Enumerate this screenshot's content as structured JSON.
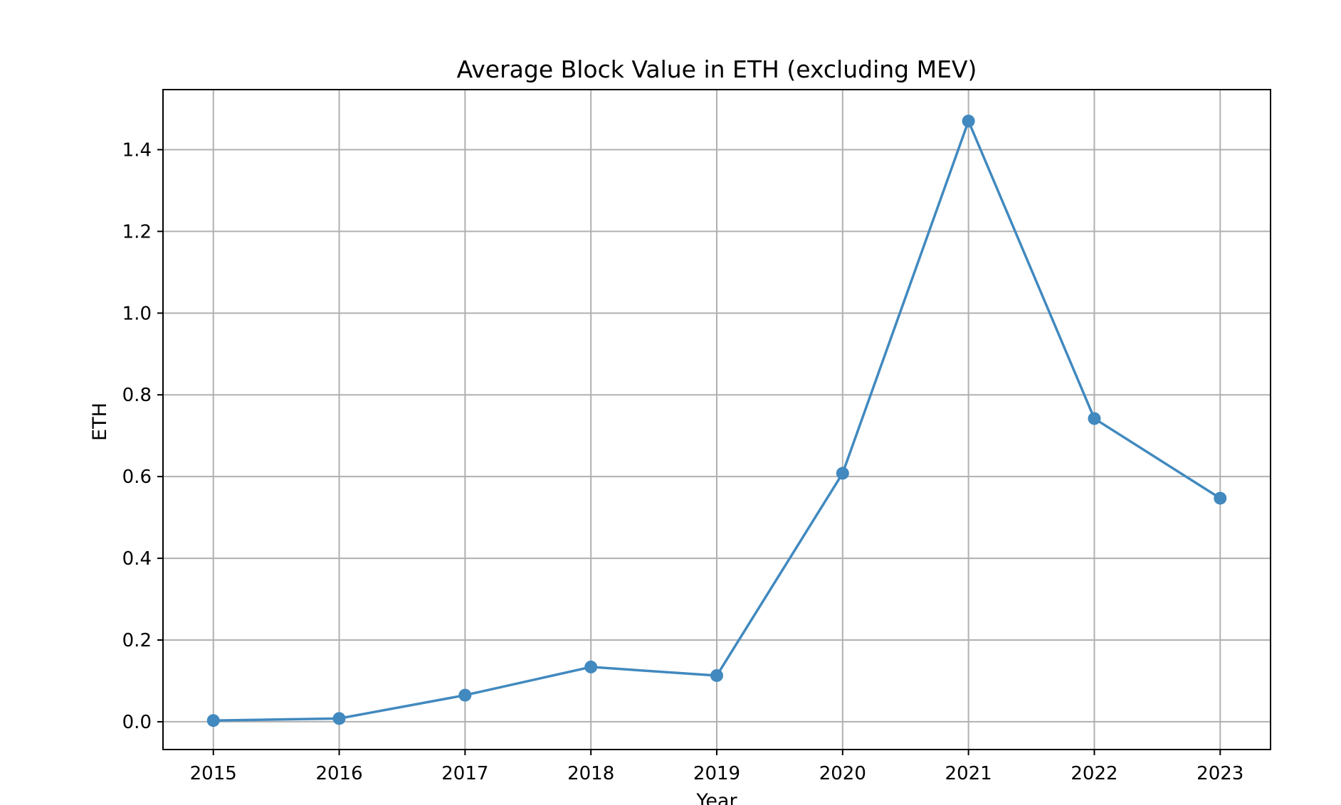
{
  "chart_data": {
    "type": "line",
    "title": "Average Block Value in ETH (excluding MEV)",
    "xlabel": "Year",
    "ylabel": "ETH",
    "x": [
      2015,
      2016,
      2017,
      2018,
      2019,
      2020,
      2021,
      2022,
      2023
    ],
    "series": [
      {
        "values": [
          0.003,
          0.008,
          0.065,
          0.134,
          0.113,
          0.608,
          1.47,
          0.742,
          0.547
        ],
        "color": "#4189bf",
        "marker": "circle"
      }
    ],
    "xlim": [
      2014.6,
      2023.4
    ],
    "ylim": [
      -0.068,
      1.547
    ],
    "xticks": [
      "2015",
      "2016",
      "2017",
      "2018",
      "2019",
      "2020",
      "2021",
      "2022",
      "2023"
    ],
    "yticks": [
      0.0,
      0.2,
      0.4,
      0.6,
      0.8,
      1.0,
      1.2,
      1.4
    ],
    "ytick_labels": [
      "0.0",
      "0.2",
      "0.4",
      "0.6",
      "0.8",
      "1.0",
      "1.2",
      "1.4"
    ],
    "grid": true,
    "legend": "none"
  }
}
